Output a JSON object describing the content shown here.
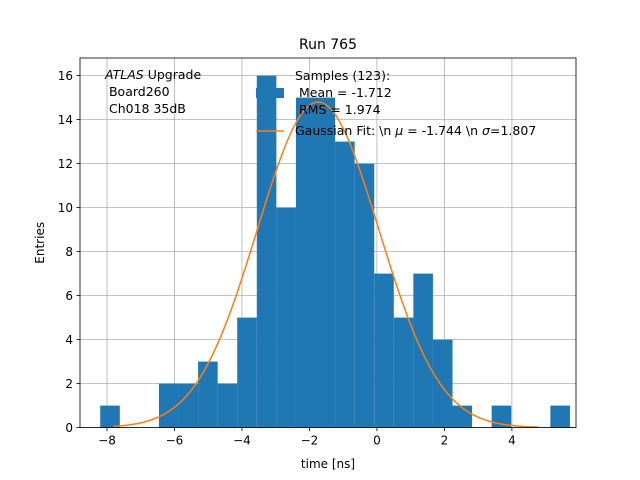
{
  "chart_data": {
    "type": "bar",
    "title": "Run 765",
    "xlabel": "time [ns]",
    "ylabel": "Entries",
    "xlim": [
      -8.8,
      5.9
    ],
    "ylim": [
      0,
      16.8
    ],
    "xticks": [
      -8,
      -6,
      -4,
      -2,
      0,
      2,
      4
    ],
    "xtick_labels": [
      "−8",
      "−6",
      "−4",
      "−2",
      "0",
      "2",
      "4"
    ],
    "yticks": [
      0,
      2,
      4,
      6,
      8,
      10,
      12,
      14,
      16
    ],
    "ytick_labels": [
      "0",
      "2",
      "4",
      "6",
      "8",
      "10",
      "12",
      "14",
      "16"
    ],
    "grid": true,
    "legend_position": "top-right",
    "annotation": {
      "italic": "ATLAS",
      "line1_rest": " Upgrade",
      "line2": " Board260",
      "line3": " Ch018 35dB"
    },
    "histogram": {
      "name": "Samples (123):\n Mean = -1.712\n RMS = 1.974",
      "legend_lines": [
        "Samples (123):",
        " Mean = -1.712",
        " RMS = 1.974"
      ],
      "color": "#1f77b4",
      "bin_edges": [
        -8.2,
        -7.62,
        -7.04,
        -6.46,
        -5.88,
        -5.3,
        -4.72,
        -4.14,
        -3.56,
        -2.98,
        -2.4,
        -1.82,
        -1.24,
        -0.66,
        -0.08,
        0.5,
        1.08,
        1.66,
        2.24,
        2.82,
        3.4,
        3.98,
        4.56,
        5.14,
        5.72
      ],
      "counts": [
        1,
        0,
        0,
        2,
        2,
        3,
        2,
        5,
        16,
        10,
        15,
        15,
        13,
        12,
        7,
        5,
        7,
        4,
        1,
        0,
        1,
        0,
        0,
        1
      ]
    },
    "fit": {
      "name": "Gaussian Fit: \\n μ = -1.744 \\n σ=1.807",
      "legend_prefix": "Gaussian Fit: \\n ",
      "legend_mu": "μ",
      "legend_mid": " = -1.744 \\n ",
      "legend_sigma": "σ",
      "legend_suffix": "=1.807",
      "color": "#ff7f0e",
      "mu": -1.744,
      "sigma": 1.807,
      "amplitude": 14.8,
      "x_range": [
        -7.8,
        4.8
      ]
    }
  }
}
